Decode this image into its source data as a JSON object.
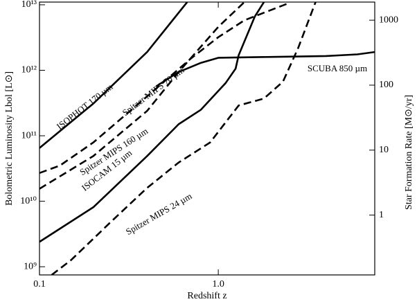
{
  "chart_data": {
    "type": "line",
    "xlabel": "Redshift z",
    "ylabel": "Bolometric Luminosity Lbol [L⊙]",
    "y2label": "Star Formation Rate [M⊙/yr]",
    "xscale": "log",
    "yscale": "log",
    "y2scale": "log",
    "xlim": [
      0.1,
      7.5
    ],
    "ylim": [
      750000000.0,
      11000000000000.0
    ],
    "y2lim": [
      0.12,
      1900
    ],
    "xticks": [
      0.1,
      {
        "value": 1,
        "label": "1.0"
      }
    ],
    "yticks": [
      {
        "value": 1000000000.0,
        "label": "10⁹"
      },
      {
        "value": 10000000000.0,
        "label": "10¹⁰"
      },
      {
        "value": 100000000000.0,
        "label": "10¹¹"
      },
      {
        "value": 1000000000000.0,
        "label": "10¹²"
      },
      {
        "value": 10000000000000.0,
        "label": "10¹³"
      }
    ],
    "y2ticks": [
      1,
      10,
      100,
      1000
    ],
    "series": [
      {
        "name": "ISOPHOT 170 µm",
        "color": "#000000",
        "style": "solid",
        "x": [
          0.1,
          0.2,
          0.4,
          0.67
        ],
        "values": [
          65000000000.0,
          310000000000.0,
          1900000000000.0,
          11000000000000.0
        ]
      },
      {
        "name": "Spitzer MIPS 70 µm",
        "color": "#000000",
        "style": "dashed",
        "x": [
          0.1,
          0.2,
          0.4,
          0.6,
          1.0,
          1.4
        ],
        "values": [
          15500000000.0,
          49000000000.0,
          240000000000.0,
          940000000000.0,
          4600000000000.0,
          11000000000000.0
        ]
      },
      {
        "name": "Spitzer MIPS 160 µm",
        "color": "#000000",
        "style": "dashed",
        "x": [
          0.1,
          0.13,
          0.2,
          0.4,
          0.7,
          1.0,
          1.4,
          2.5
        ],
        "values": [
          27000000000.0,
          35000000000.0,
          79000000000.0,
          400000000000.0,
          1500000000000.0,
          3200000000000.0,
          5800000000000.0,
          10700000000000.0
        ]
      },
      {
        "name": "ISOCAM 15 µm",
        "color": "#000000",
        "style": "solid",
        "x": [
          0.1,
          0.2,
          0.4,
          0.6,
          0.8,
          1.1,
          1.25,
          1.3,
          1.6,
          1.8
        ],
        "values": [
          2400000000.0,
          8100000000.0,
          49000000000.0,
          150000000000.0,
          250000000000.0,
          640000000000.0,
          1060000000000.0,
          1700000000000.0,
          6600000000000.0,
          11000000000000.0
        ]
      },
      {
        "name": "SCUBA 850 µm",
        "color": "#000000",
        "style": "solid",
        "x": [
          0.45,
          0.6,
          0.8,
          1.0,
          2,
          4,
          6,
          7.5
        ],
        "values": [
          570000000000.0,
          940000000000.0,
          1300000000000.0,
          1550000000000.0,
          1600000000000.0,
          1650000000000.0,
          1750000000000.0,
          1900000000000.0
        ]
      },
      {
        "name": "Spitzer MIPS 24 µm",
        "color": "#000000",
        "style": "dashed",
        "x": [
          0.117,
          0.15,
          0.25,
          0.4,
          0.6,
          0.9,
          1.3,
          1.8,
          2.3,
          2.8,
          3.5
        ],
        "values": [
          750000000.0,
          1260000000.0,
          4800000000.0,
          16000000000.0,
          39000000000.0,
          79000000000.0,
          290000000000.0,
          370000000000.0,
          670000000000.0,
          2200000000000.0,
          11000000000000.0
        ]
      }
    ]
  }
}
